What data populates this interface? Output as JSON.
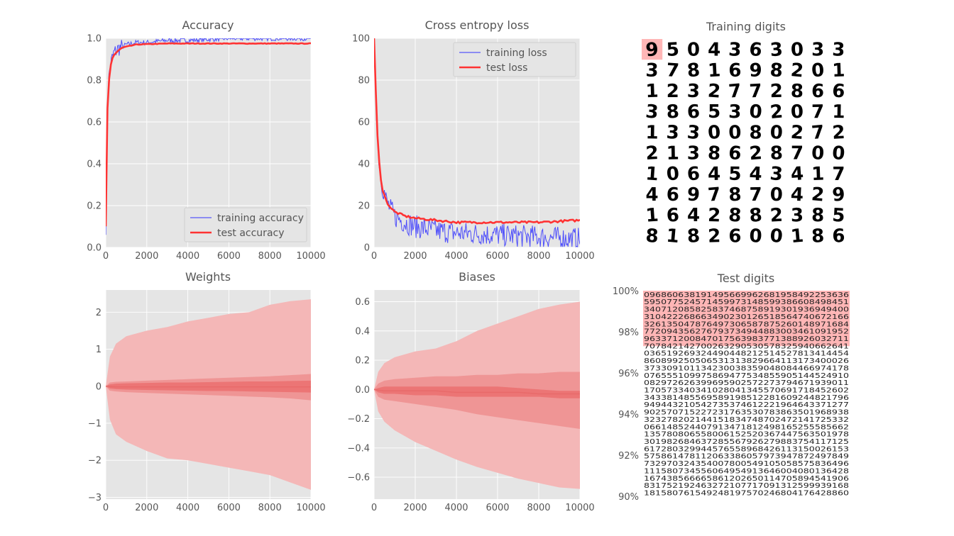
{
  "colors": {
    "axes_bg": "#e5e5e5",
    "train_line": "#3333ff",
    "test_line": "#ff3333",
    "band_outer": "#f4b7b7",
    "band_mid": "#ef9595",
    "band_inner": "#ec7575",
    "highlight": "#ffb6b6"
  },
  "chart_data": [
    {
      "id": "accuracy",
      "type": "line",
      "title": "Accuracy",
      "xlim": [
        0,
        10000
      ],
      "ylim": [
        0,
        1.0
      ],
      "xticks": [
        0,
        2000,
        4000,
        6000,
        8000,
        10000
      ],
      "yticks": [
        0.0,
        0.2,
        0.4,
        0.6,
        0.8,
        1.0
      ],
      "ytick_labels": [
        "0.0",
        "0.2",
        "0.4",
        "0.6",
        "0.8",
        "1.0"
      ],
      "legend_position": "lower-right",
      "series": [
        {
          "name": "training accuracy",
          "color": "#3333ff",
          "x": [
            0,
            50,
            100,
            200,
            300,
            400,
            600,
            800,
            1000,
            1500,
            2000,
            3000,
            4000,
            6000,
            8000,
            10000
          ],
          "y": [
            0.1,
            0.55,
            0.75,
            0.86,
            0.9,
            0.93,
            0.95,
            0.96,
            0.97,
            0.98,
            0.98,
            0.99,
            0.99,
            1.0,
            1.0,
            1.0
          ]
        },
        {
          "name": "test accuracy",
          "color": "#ff3333",
          "x": [
            0,
            50,
            100,
            200,
            300,
            400,
            600,
            800,
            1000,
            1500,
            2000,
            3000,
            4000,
            6000,
            8000,
            10000
          ],
          "y": [
            0.1,
            0.55,
            0.72,
            0.85,
            0.9,
            0.92,
            0.94,
            0.955,
            0.96,
            0.97,
            0.972,
            0.975,
            0.975,
            0.975,
            0.975,
            0.975
          ]
        }
      ]
    },
    {
      "id": "loss",
      "type": "line",
      "title": "Cross entropy loss",
      "xlim": [
        0,
        10000
      ],
      "ylim": [
        0,
        100
      ],
      "xticks": [
        0,
        2000,
        4000,
        6000,
        8000,
        10000
      ],
      "yticks": [
        0,
        20,
        40,
        60,
        80,
        100
      ],
      "ytick_labels": [
        "0",
        "20",
        "40",
        "60",
        "80",
        "100"
      ],
      "legend_position": "upper-right",
      "series": [
        {
          "name": "training loss",
          "color": "#3333ff",
          "x": [
            0,
            50,
            100,
            200,
            300,
            400,
            600,
            800,
            1000,
            1500,
            2000,
            3000,
            4000,
            6000,
            8000,
            10000
          ],
          "y": [
            100,
            90,
            70,
            48,
            35,
            30,
            22,
            18,
            15,
            12,
            10,
            8,
            7,
            6,
            5,
            4
          ]
        },
        {
          "name": "test loss",
          "color": "#ff3333",
          "x": [
            0,
            50,
            100,
            200,
            300,
            400,
            600,
            800,
            1000,
            1500,
            2000,
            3000,
            4000,
            6000,
            8000,
            10000
          ],
          "y": [
            100,
            88,
            68,
            46,
            35,
            28,
            22,
            19,
            17,
            15,
            14,
            13,
            12,
            12,
            12,
            13
          ]
        }
      ]
    },
    {
      "id": "weights",
      "type": "area",
      "title": "Weights",
      "xlim": [
        0,
        10000
      ],
      "ylim": [
        -3.05,
        2.6
      ],
      "xticks": [
        0,
        2000,
        4000,
        6000,
        8000,
        10000
      ],
      "yticks": [
        -3,
        -2,
        -1,
        0,
        1,
        2
      ],
      "ytick_labels": [
        "−3",
        "−2",
        "−1",
        "0",
        "1",
        "2"
      ],
      "x": [
        0,
        200,
        500,
        1000,
        2000,
        3000,
        4000,
        5000,
        6000,
        7000,
        8000,
        9000,
        10000
      ],
      "max": [
        0,
        0.8,
        1.15,
        1.35,
        1.5,
        1.6,
        1.75,
        1.85,
        1.95,
        2.0,
        2.2,
        2.3,
        2.35
      ],
      "p75": [
        0,
        0.1,
        0.12,
        0.13,
        0.15,
        0.17,
        0.19,
        0.21,
        0.23,
        0.25,
        0.27,
        0.3,
        0.33
      ],
      "p60": [
        0,
        0.05,
        0.07,
        0.08,
        0.09,
        0.1,
        0.1,
        0.11,
        0.12,
        0.13,
        0.13,
        0.14,
        0.15
      ],
      "median": [
        0,
        -0.01,
        -0.02,
        -0.02,
        -0.02,
        -0.02,
        -0.02,
        -0.02,
        -0.02,
        -0.02,
        -0.02,
        -0.02,
        -0.02
      ],
      "p40": [
        0,
        -0.06,
        -0.08,
        -0.09,
        -0.1,
        -0.11,
        -0.12,
        -0.13,
        -0.13,
        -0.14,
        -0.15,
        -0.16,
        -0.17
      ],
      "p25": [
        0,
        -0.12,
        -0.14,
        -0.16,
        -0.18,
        -0.2,
        -0.22,
        -0.24,
        -0.26,
        -0.28,
        -0.3,
        -0.33,
        -0.38
      ],
      "min": [
        0,
        -0.9,
        -1.3,
        -1.5,
        -1.75,
        -1.95,
        -2.0,
        -2.1,
        -2.2,
        -2.3,
        -2.4,
        -2.6,
        -2.8
      ]
    },
    {
      "id": "biases",
      "type": "area",
      "title": "Biases",
      "xlim": [
        0,
        10000
      ],
      "ylim": [
        -0.75,
        0.68
      ],
      "xticks": [
        0,
        2000,
        4000,
        6000,
        8000,
        10000
      ],
      "yticks": [
        -0.6,
        -0.4,
        -0.2,
        0.0,
        0.2,
        0.4,
        0.6
      ],
      "ytick_labels": [
        "−0.6",
        "−0.4",
        "−0.2",
        "0.0",
        "0.2",
        "0.4",
        "0.6"
      ],
      "x": [
        0,
        200,
        500,
        1000,
        2000,
        3000,
        4000,
        5000,
        6000,
        7000,
        8000,
        9000,
        10000
      ],
      "max": [
        0,
        0.12,
        0.18,
        0.22,
        0.26,
        0.28,
        0.33,
        0.4,
        0.45,
        0.5,
        0.55,
        0.58,
        0.6
      ],
      "p75": [
        0,
        0.04,
        0.06,
        0.07,
        0.08,
        0.09,
        0.09,
        0.1,
        0.1,
        0.11,
        0.11,
        0.12,
        0.12
      ],
      "p60": [
        0,
        0.01,
        0.02,
        0.02,
        0.02,
        0.02,
        0.02,
        0.02,
        0.02,
        0.01,
        0.0,
        -0.01,
        -0.01
      ],
      "median": [
        0,
        -0.005,
        -0.01,
        -0.01,
        -0.01,
        -0.01,
        -0.02,
        -0.02,
        -0.02,
        -0.02,
        -0.03,
        -0.03,
        -0.03
      ],
      "p40": [
        0,
        -0.02,
        -0.03,
        -0.03,
        -0.04,
        -0.04,
        -0.05,
        -0.05,
        -0.05,
        -0.05,
        -0.05,
        -0.06,
        -0.06
      ],
      "p25": [
        0,
        -0.05,
        -0.07,
        -0.08,
        -0.1,
        -0.12,
        -0.14,
        -0.17,
        -0.19,
        -0.21,
        -0.23,
        -0.25,
        -0.27
      ],
      "min": [
        0,
        -0.15,
        -0.22,
        -0.28,
        -0.36,
        -0.42,
        -0.48,
        -0.53,
        -0.57,
        -0.61,
        -0.64,
        -0.67,
        -0.68
      ]
    },
    {
      "id": "training_digits",
      "type": "table",
      "title": "Training digits",
      "rows": [
        "9504363033",
        "3781698201",
        "1232772866",
        "3865302071",
        "1330080272",
        "2138628700",
        "1064543417",
        "4697870429",
        "1642882385",
        "8182600186"
      ],
      "highlighted": [
        [
          0,
          0
        ]
      ]
    },
    {
      "id": "test_digits",
      "type": "table",
      "title": "Test digits",
      "yticks": [
        90,
        92,
        94,
        96,
        98,
        100
      ],
      "ytick_labels": [
        "90%",
        "92%",
        "94%",
        "96%",
        "98%",
        "100%"
      ],
      "ylim": [
        90,
        100
      ],
      "highlight_from_percent": 97.3
    }
  ]
}
